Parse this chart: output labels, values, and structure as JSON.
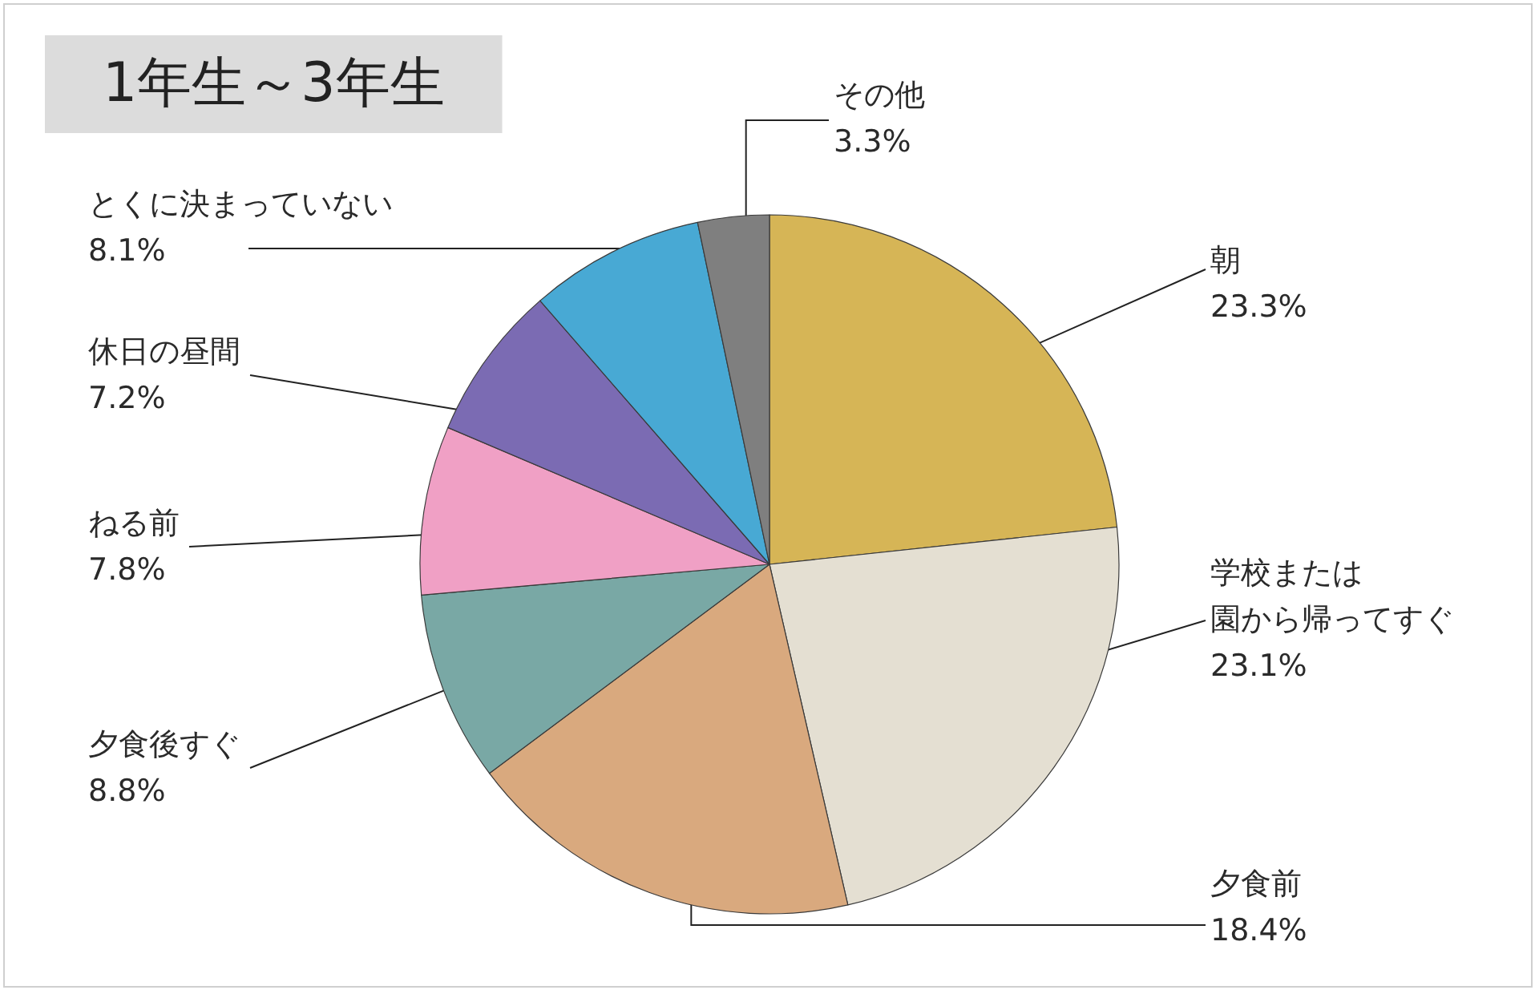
{
  "chart_data": {
    "type": "pie",
    "title": "1年生～3年生",
    "categories": [
      "朝",
      "学校または園から帰ってすぐ",
      "夕食前",
      "夕食後すぐ",
      "ねる前",
      "休日の昼間",
      "とくに決まっていない",
      "その他"
    ],
    "values": [
      23.3,
      23.1,
      18.4,
      8.8,
      7.8,
      7.2,
      8.1,
      3.3
    ],
    "value_labels": [
      "23.3%",
      "23.1%",
      "18.4%",
      "8.8%",
      "7.8%",
      "7.2%",
      "8.1%",
      "3.3%"
    ],
    "colors": [
      "#d6b556",
      "#e4dfd2",
      "#d9a97e",
      "#79a8a5",
      "#f0a0c5",
      "#7b6bb3",
      "#48a9d4",
      "#7f7f7f"
    ]
  }
}
